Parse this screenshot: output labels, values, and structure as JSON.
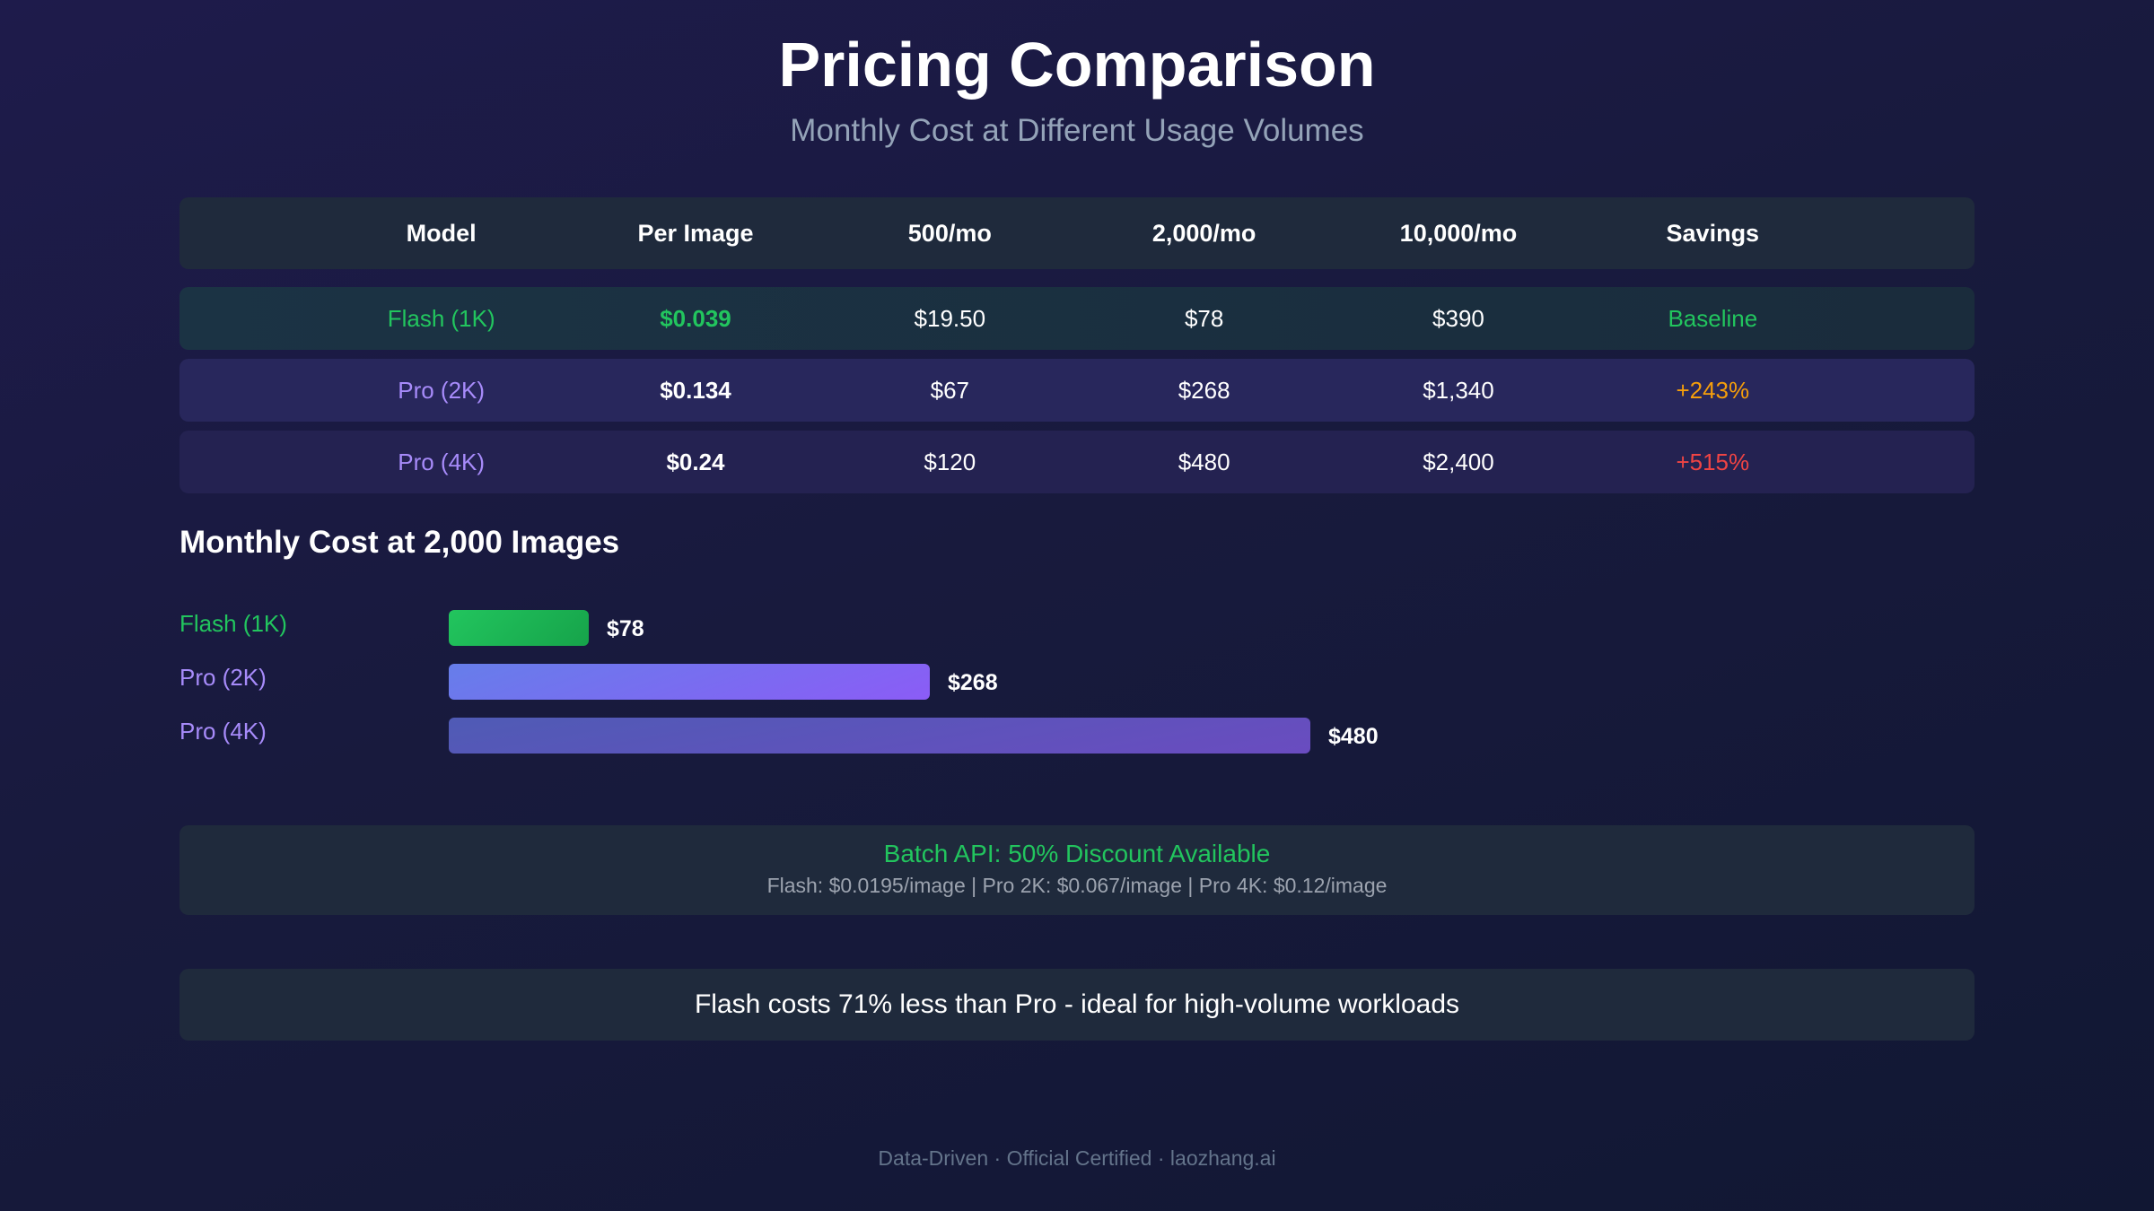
{
  "header": {
    "title": "Pricing Comparison",
    "subtitle": "Monthly Cost at Different Usage Volumes"
  },
  "table": {
    "columns": [
      "Model",
      "Per Image",
      "500/mo",
      "2,000/mo",
      "10,000/mo",
      "Savings"
    ],
    "rows": [
      {
        "model": "Flash (1K)",
        "per_image": "$0.039",
        "m500": "$19.50",
        "m2000": "$78",
        "m10000": "$390",
        "savings": "Baseline"
      },
      {
        "model": "Pro (2K)",
        "per_image": "$0.134",
        "m500": "$67",
        "m2000": "$268",
        "m10000": "$1,340",
        "savings": "+243%"
      },
      {
        "model": "Pro (4K)",
        "per_image": "$0.24",
        "m500": "$120",
        "m2000": "$480",
        "m10000": "$2,400",
        "savings": "+515%"
      }
    ]
  },
  "chart_data": {
    "type": "bar",
    "orientation": "horizontal",
    "title": "Monthly Cost at 2,000 Images",
    "categories": [
      "Flash (1K)",
      "Pro (2K)",
      "Pro (4K)"
    ],
    "values": [
      78,
      268,
      480
    ],
    "value_labels": [
      "$78",
      "$268",
      "$480"
    ],
    "colors": [
      "#22c55e",
      "#8b5cf6",
      "#5b55b8"
    ]
  },
  "colors": {
    "green": "#22c55e",
    "purple": "#a78bfa",
    "orange": "#f59e0b",
    "red": "#ef4444"
  },
  "batch": {
    "title": "Batch API: 50% Discount Available",
    "detail": "Flash: $0.0195/image | Pro 2K: $0.067/image | Pro 4K: $0.12/image"
  },
  "insight": "Flash costs 71% less than Pro - ideal for high-volume workloads",
  "footer": "Data-Driven · Official Certified · laozhang.ai"
}
